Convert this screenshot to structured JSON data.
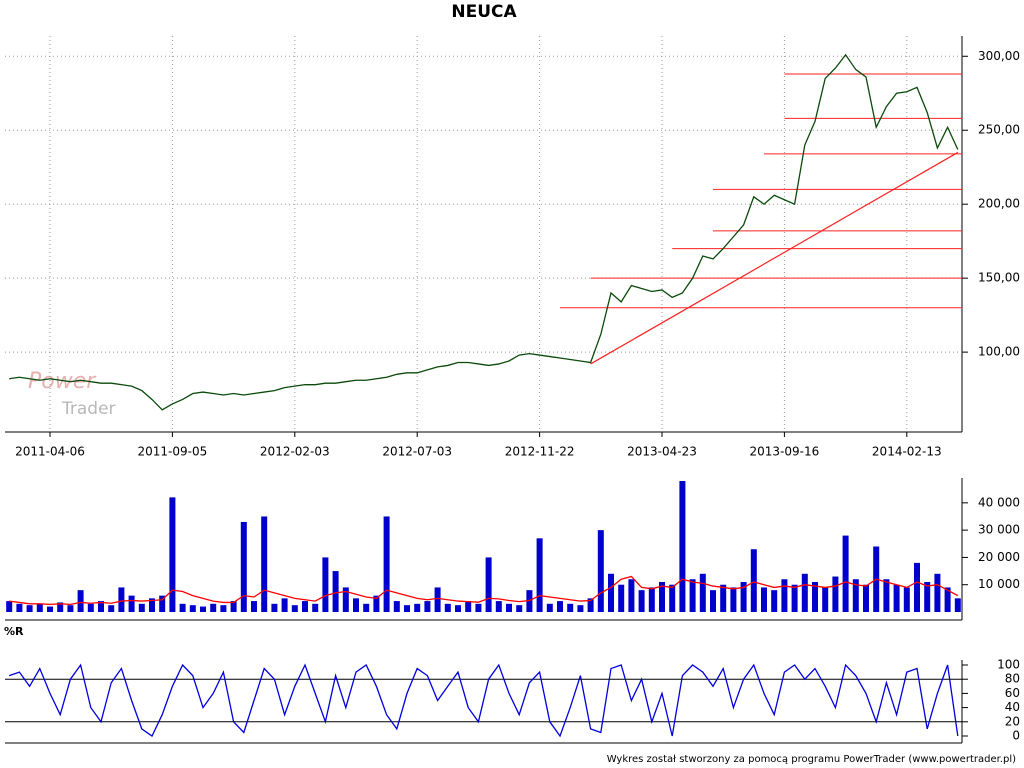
{
  "chart_data": [
    {
      "type": "line",
      "title": "NEUCA",
      "categories": [
        null,
        null,
        null,
        null,
        "2011-04-06",
        null,
        null,
        null,
        null,
        null,
        null,
        null,
        null,
        null,
        null,
        null,
        "2011-09-05",
        null,
        null,
        null,
        null,
        null,
        null,
        null,
        null,
        null,
        null,
        null,
        "2012-02-03",
        null,
        null,
        null,
        null,
        null,
        null,
        null,
        null,
        null,
        null,
        null,
        "2012-07-03",
        null,
        null,
        null,
        null,
        null,
        null,
        null,
        null,
        null,
        null,
        null,
        "2012-11-22",
        null,
        null,
        null,
        null,
        null,
        null,
        null,
        null,
        null,
        null,
        null,
        "2013-04-23",
        null,
        null,
        null,
        null,
        null,
        null,
        null,
        null,
        null,
        null,
        null,
        "2013-09-16",
        null,
        null,
        null,
        null,
        null,
        null,
        null,
        null,
        null,
        null,
        null,
        "2014-02-13",
        null,
        null,
        null,
        null,
        null
      ],
      "series": [
        {
          "color": "#0a4a0a",
          "values": [
            82,
            83,
            82,
            81,
            82,
            81,
            80,
            81,
            80,
            79,
            79,
            78,
            77,
            74,
            68,
            61,
            65,
            68,
            72,
            73,
            72,
            71,
            72,
            71,
            72,
            73,
            74,
            76,
            77,
            78,
            78,
            79,
            79,
            80,
            81,
            81,
            82,
            83,
            85,
            86,
            86,
            88,
            90,
            91,
            93,
            93,
            92,
            91,
            92,
            94,
            98,
            99,
            98,
            97,
            96,
            95,
            94,
            93,
            112,
            140,
            134,
            145,
            143,
            141,
            142,
            137,
            140,
            150,
            165,
            163,
            170,
            178,
            186,
            205,
            200,
            206,
            203,
            200,
            240,
            256,
            285,
            292,
            301,
            291,
            286,
            252,
            266,
            275,
            276,
            279,
            262,
            238,
            252,
            237
          ]
        }
      ],
      "ylim": [
        46,
        311
      ],
      "yticks": [
        {
          "value": 100,
          "label": "100,00"
        },
        {
          "value": 150,
          "label": "150,00"
        },
        {
          "value": 200,
          "label": "200,00"
        },
        {
          "value": 250,
          "label": "250,00"
        },
        {
          "value": 300,
          "label": "300,00"
        }
      ],
      "grid": true,
      "level_color": "#ff2020",
      "levels": [
        {
          "value": 288,
          "start": 76
        },
        {
          "value": 258,
          "start": 76
        },
        {
          "value": 234,
          "start": 74
        },
        {
          "value": 210,
          "start": 69
        },
        {
          "value": 182,
          "start": 69
        },
        {
          "value": 170,
          "start": 65
        },
        {
          "value": 150,
          "start": 57
        },
        {
          "value": 130,
          "start": 54
        }
      ],
      "trend": {
        "from": [
          57,
          92
        ],
        "to": [
          93,
          235
        ]
      },
      "watermark": [
        "Power",
        "Trader"
      ]
    },
    {
      "type": "bar",
      "series": [
        {
          "color": "#0000cc",
          "values": [
            4000,
            3000,
            2500,
            3000,
            2000,
            3500,
            2500,
            8000,
            3000,
            4000,
            2500,
            9000,
            6000,
            3000,
            5000,
            6000,
            42000,
            3000,
            2500,
            2000,
            3000,
            2500,
            4000,
            33000,
            4000,
            35000,
            3000,
            5000,
            2500,
            4000,
            3000,
            20000,
            15000,
            9000,
            5000,
            3000,
            6000,
            35000,
            4000,
            2500,
            3000,
            4000,
            9000,
            3000,
            2500,
            4000,
            3000,
            20000,
            4000,
            3000,
            2500,
            8000,
            27000,
            3000,
            4000,
            3000,
            2500,
            5000,
            30000,
            14000,
            10000,
            12000,
            8000,
            9000,
            11000,
            10000,
            48000,
            12000,
            14000,
            8000,
            10000,
            9000,
            11000,
            23000,
            9000,
            8000,
            12000,
            10000,
            14000,
            11000,
            9000,
            13000,
            28000,
            12000,
            10000,
            24000,
            12000,
            10000,
            9000,
            18000,
            11000,
            14000,
            9000,
            5000
          ]
        },
        {
          "type": "line",
          "color": "#ff0000",
          "values": [
            4000,
            3500,
            3000,
            3000,
            2800,
            3000,
            2800,
            3500,
            3200,
            3500,
            3200,
            4000,
            4200,
            4000,
            4200,
            4500,
            8000,
            7500,
            6000,
            5000,
            4000,
            3500,
            3500,
            6000,
            5500,
            8000,
            7000,
            6000,
            5000,
            4500,
            4000,
            6000,
            7000,
            7500,
            6500,
            5500,
            5000,
            8000,
            7000,
            6000,
            5000,
            4500,
            5000,
            4500,
            4000,
            3800,
            3600,
            5000,
            4800,
            4200,
            3800,
            4200,
            6000,
            5500,
            5000,
            4500,
            4000,
            4200,
            7000,
            9000,
            12000,
            13000,
            9000,
            8500,
            9500,
            9000,
            12000,
            11000,
            10500,
            9500,
            9000,
            8500,
            9000,
            11000,
            10000,
            9000,
            9500,
            9000,
            10000,
            9500,
            9000,
            9500,
            11000,
            10000,
            9500,
            12000,
            11000,
            10000,
            9000,
            11000,
            9500,
            10000,
            8000,
            6000
          ]
        }
      ],
      "ylim": [
        0,
        48000
      ],
      "yticks": [
        {
          "value": 10000,
          "label": "10 000"
        },
        {
          "value": 20000,
          "label": "20 000"
        },
        {
          "value": 30000,
          "label": "30 000"
        },
        {
          "value": 40000,
          "label": "40 000"
        }
      ]
    },
    {
      "type": "line",
      "title": "%R",
      "series": [
        {
          "color": "#0000dd",
          "values": [
            85,
            90,
            70,
            95,
            60,
            30,
            80,
            100,
            40,
            20,
            75,
            95,
            50,
            10,
            0,
            30,
            70,
            100,
            85,
            40,
            60,
            90,
            20,
            5,
            50,
            95,
            80,
            30,
            70,
            100,
            60,
            20,
            85,
            40,
            90,
            100,
            70,
            30,
            10,
            60,
            95,
            85,
            50,
            70,
            90,
            40,
            20,
            80,
            100,
            60,
            30,
            75,
            90,
            20,
            0,
            40,
            85,
            10,
            5,
            95,
            100,
            50,
            80,
            20,
            60,
            0,
            85,
            100,
            90,
            70,
            95,
            40,
            80,
            100,
            60,
            30,
            90,
            100,
            80,
            95,
            70,
            40,
            100,
            85,
            60,
            20,
            75,
            30,
            90,
            95,
            10,
            60,
            100,
            0
          ]
        }
      ],
      "ylim": [
        0,
        100
      ],
      "yticks": [
        0,
        20,
        40,
        60,
        80,
        100
      ],
      "levels": [
        {
          "value": 20,
          "start": 0
        },
        {
          "value": 80,
          "start": 0
        }
      ],
      "level_color": "#000000"
    }
  ],
  "footer": "Wykres został stworzony za pomocą programu PowerTrader (www.powertrader.pl)"
}
